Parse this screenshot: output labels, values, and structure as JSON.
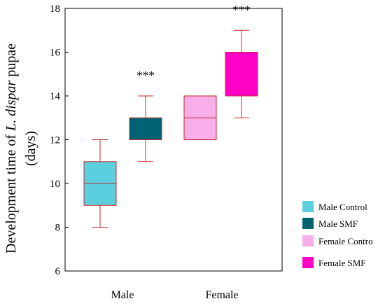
{
  "chart_data": {
    "type": "box",
    "ylabel_prefix": "Development time of ",
    "ylabel_italic": "L. dispar",
    "ylabel_suffix": " pupae",
    "ylabel_line2": "(days)",
    "ylim": [
      6,
      18
    ],
    "yticks": [
      6,
      8,
      10,
      12,
      14,
      16,
      18
    ],
    "groups": [
      "Male",
      "Female"
    ],
    "grid": false,
    "legend_position": "right",
    "series": [
      {
        "name": "Male Control",
        "group": "Male",
        "color": "#5ccfdf",
        "min": 8,
        "q1": 9,
        "median": 10,
        "q3": 11,
        "max": 12,
        "annotation": ""
      },
      {
        "name": "Male SMF",
        "group": "Male",
        "color": "#006374",
        "min": 11,
        "q1": 12,
        "median": 12,
        "q3": 13,
        "max": 14,
        "annotation": "***"
      },
      {
        "name": "Female Contro",
        "group": "Female",
        "color": "#f8aee8",
        "min": 12,
        "q1": 12,
        "median": 13,
        "q3": 14,
        "max": 14,
        "annotation": ""
      },
      {
        "name": "Female SMF",
        "group": "Female",
        "color": "#ff00c6",
        "min": 13,
        "q1": 14,
        "median": 16,
        "q3": 16,
        "max": 17,
        "annotation": "***"
      }
    ],
    "whisker_color": "#c0282d",
    "box_border_color": "#c0282d"
  }
}
